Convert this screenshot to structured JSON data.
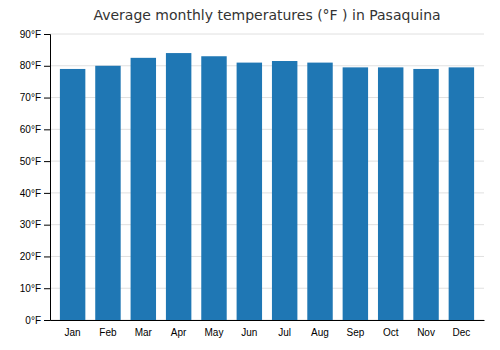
{
  "chart_data": {
    "type": "bar",
    "title": "Average monthly temperatures (°F ) in Pasaquina",
    "categories": [
      "Jan",
      "Feb",
      "Mar",
      "Apr",
      "May",
      "Jun",
      "Jul",
      "Aug",
      "Sep",
      "Oct",
      "Nov",
      "Dec"
    ],
    "values": [
      79,
      80,
      82.5,
      84,
      83,
      81,
      81.5,
      81,
      79.5,
      79.5,
      79,
      79.5
    ],
    "ylim": [
      0,
      90
    ],
    "yticks": [
      {
        "value": 0,
        "label": "0°F"
      },
      {
        "value": 10,
        "label": "10°F"
      },
      {
        "value": 20,
        "label": "20°F"
      },
      {
        "value": 30,
        "label": "30°F"
      },
      {
        "value": 40,
        "label": "40°F"
      },
      {
        "value": 50,
        "label": "50°F"
      },
      {
        "value": 60,
        "label": "60°F"
      },
      {
        "value": 70,
        "label": "70°F"
      },
      {
        "value": 80,
        "label": "80°F"
      },
      {
        "value": 90,
        "label": "90°F"
      }
    ],
    "grid": true
  }
}
